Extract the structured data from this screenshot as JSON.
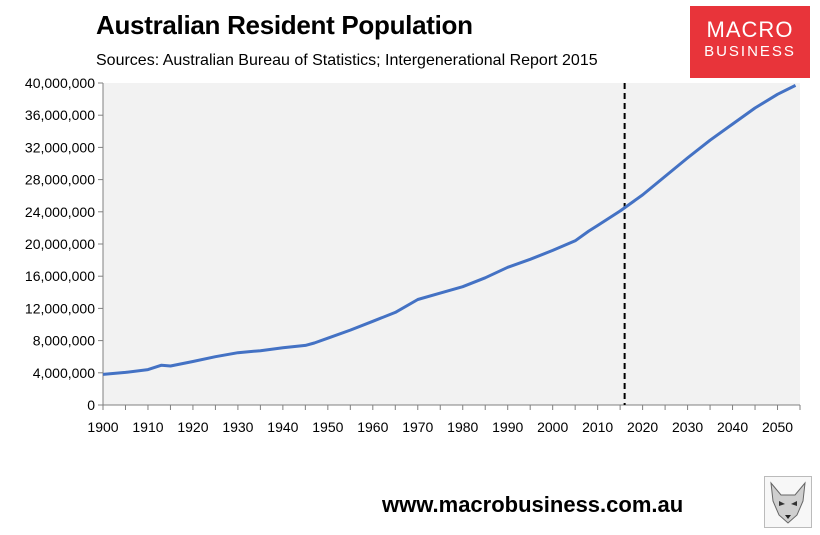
{
  "header": {
    "title": "Australian Resident Population",
    "subtitle": "Sources: Australian Bureau of Statistics; Intergenerational Report 2015"
  },
  "logo": {
    "line1": "MACRO",
    "line2": "BUSINESS",
    "color": "#e8343a"
  },
  "footer": {
    "url": "www.macrobusiness.com.au"
  },
  "colors": {
    "series": "#4472c4",
    "plot_bg": "#f2f2f2",
    "marker_line": "#000000"
  },
  "chart_data": {
    "type": "line",
    "title": "Australian Resident Population",
    "subtitle": "Sources: Australian Bureau of Statistics; Intergenerational Report 2015",
    "xlim": [
      1900,
      2055
    ],
    "ylim": [
      0,
      40000000
    ],
    "x_ticks": [
      1900,
      1910,
      1920,
      1930,
      1940,
      1950,
      1960,
      1970,
      1980,
      1990,
      2000,
      2010,
      2020,
      2030,
      2040,
      2050
    ],
    "y_ticks": [
      0,
      4000000,
      8000000,
      12000000,
      16000000,
      20000000,
      24000000,
      28000000,
      32000000,
      36000000,
      40000000
    ],
    "y_tick_labels": [
      "0",
      "4,000,000",
      "8,000,000",
      "12,000,000",
      "16,000,000",
      "20,000,000",
      "24,000,000",
      "28,000,000",
      "32,000,000",
      "36,000,000",
      "40,000,000"
    ],
    "grid": false,
    "vertical_marker_x": 2016,
    "series": [
      {
        "x": [
          1900,
          1905,
          1910,
          1913,
          1915,
          1920,
          1925,
          1930,
          1935,
          1940,
          1945,
          1947,
          1950,
          1955,
          1960,
          1965,
          1970,
          1975,
          1980,
          1985,
          1990,
          1995,
          2000,
          2005,
          2008,
          2010,
          2015,
          2020,
          2025,
          2030,
          2035,
          2040,
          2045,
          2050,
          2054
        ],
        "y": [
          3800000,
          4050000,
          4400000,
          4950000,
          4850000,
          5400000,
          6000000,
          6500000,
          6750000,
          7100000,
          7400000,
          7700000,
          8300000,
          9300000,
          10400000,
          11500000,
          13100000,
          13900000,
          14700000,
          15800000,
          17100000,
          18100000,
          19200000,
          20400000,
          21600000,
          22300000,
          24100000,
          26100000,
          28400000,
          30700000,
          32900000,
          34900000,
          36900000,
          38600000,
          39700000
        ]
      }
    ]
  }
}
